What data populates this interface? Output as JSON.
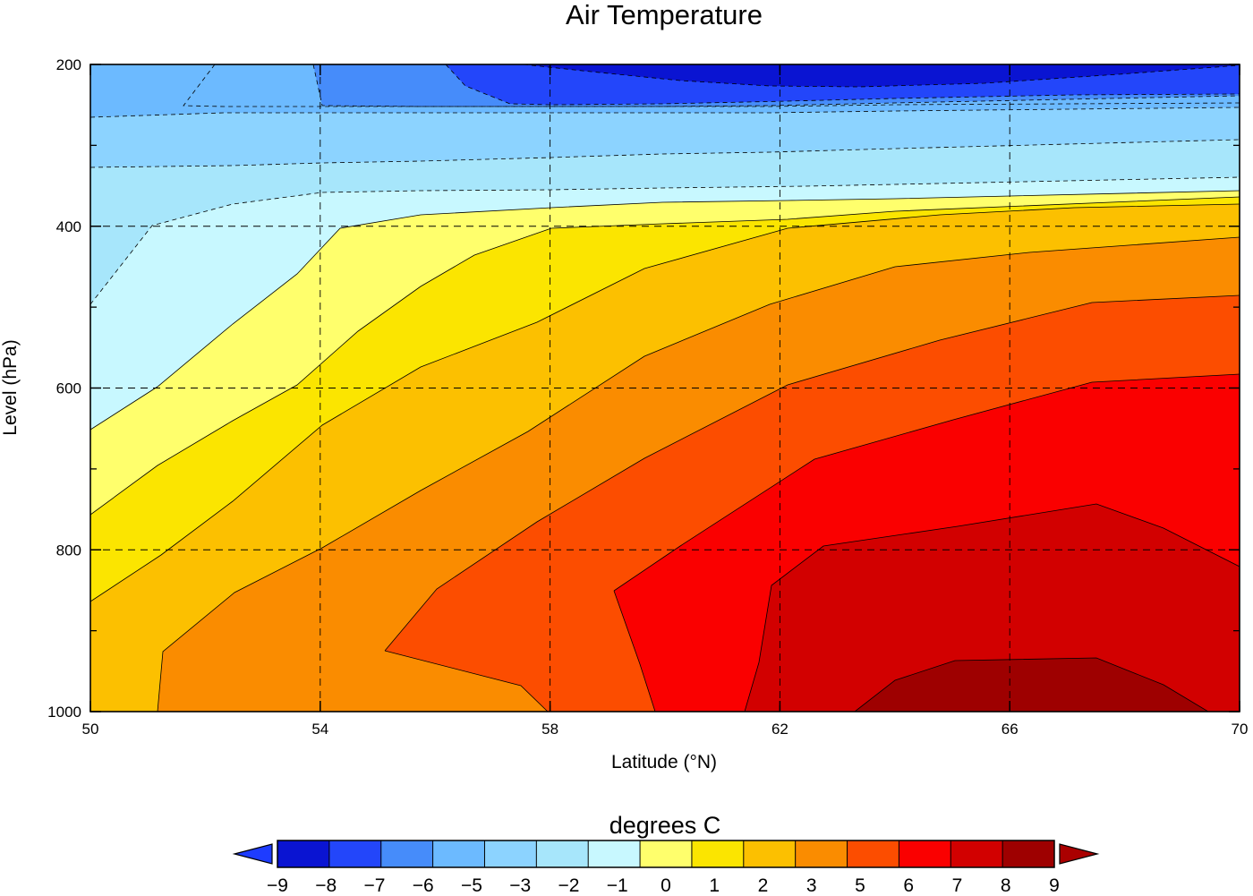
{
  "chart_data": {
    "type": "contour",
    "title": "Air Temperature",
    "xlabel": "Latitude (°N)",
    "ylabel": "Level (hPa)",
    "xlim": [
      50,
      70
    ],
    "ylim": [
      1000,
      200
    ],
    "y_axis_inverted": true,
    "x_ticks": [
      "50",
      "54",
      "58",
      "62",
      "66",
      "70"
    ],
    "y_ticks": [
      "200",
      "400",
      "600",
      "800",
      "1000"
    ],
    "grid": "dashed at major ticks",
    "colorbar": {
      "label": "degrees C",
      "levels": [
        "−9",
        "−8",
        "−7",
        "−6",
        "−5",
        "−3",
        "−2",
        "−1",
        "0",
        "1",
        "2",
        "3",
        "5",
        "6",
        "7",
        "8",
        "9"
      ],
      "colors": [
        "#0a14d2",
        "#2346fa",
        "#468cfa",
        "#6cbaff",
        "#8cd3ff",
        "#a7e6fb",
        "#c8f8ff",
        "#ffff6c",
        "#fbe500",
        "#fcc000",
        "#fa8c00",
        "#fc4d00",
        "#fa0000",
        "#d20000",
        "#9e0000"
      ],
      "under_color": "#1e3cff",
      "over_color": "#aa0000",
      "extend": "both"
    },
    "notes_levels_C": {
      "contour_bands": "upper rows coldest (blue, −9 to −1), warming toward lower-left to lower-right (yellow through dark red, 0 to 9)"
    }
  }
}
